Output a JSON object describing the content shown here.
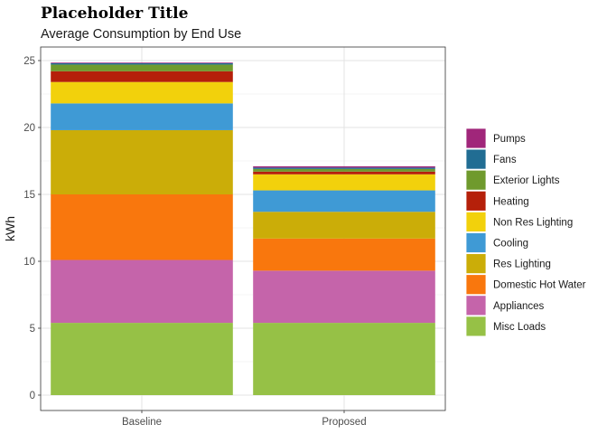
{
  "chart_data": {
    "type": "bar",
    "stacked": true,
    "title": "Placeholder Title",
    "subtitle": "Average Consumption by End Use",
    "xlabel": "",
    "ylabel": "kWh",
    "ylim": [
      0,
      26
    ],
    "yticks": [
      0,
      5,
      10,
      15,
      20,
      25
    ],
    "grid": true,
    "legend_position": "right",
    "categories": [
      "Baseline",
      "Proposed"
    ],
    "series": [
      {
        "name": "Misc Loads",
        "color": "#96C146",
        "values": [
          5.4,
          5.4
        ]
      },
      {
        "name": "Appliances",
        "color": "#C564AA",
        "values": [
          4.7,
          3.9
        ]
      },
      {
        "name": "Domestic Hot Water",
        "color": "#F9770D",
        "values": [
          4.9,
          2.4
        ]
      },
      {
        "name": "Res Lighting",
        "color": "#CBAD08",
        "values": [
          4.8,
          2.0
        ]
      },
      {
        "name": "Cooling",
        "color": "#3F9AD5",
        "values": [
          2.0,
          1.6
        ]
      },
      {
        "name": "Non Res Lighting",
        "color": "#F2D10C",
        "values": [
          1.6,
          1.2
        ]
      },
      {
        "name": "Heating",
        "color": "#B5200A",
        "values": [
          0.8,
          0.2
        ]
      },
      {
        "name": "Exterior Lights",
        "color": "#6F9A2D",
        "values": [
          0.5,
          0.2
        ]
      },
      {
        "name": "Fans",
        "color": "#216D93",
        "values": [
          0.1,
          0.1
        ]
      },
      {
        "name": "Pumps",
        "color": "#A0267A",
        "values": [
          0.05,
          0.1
        ]
      }
    ]
  }
}
